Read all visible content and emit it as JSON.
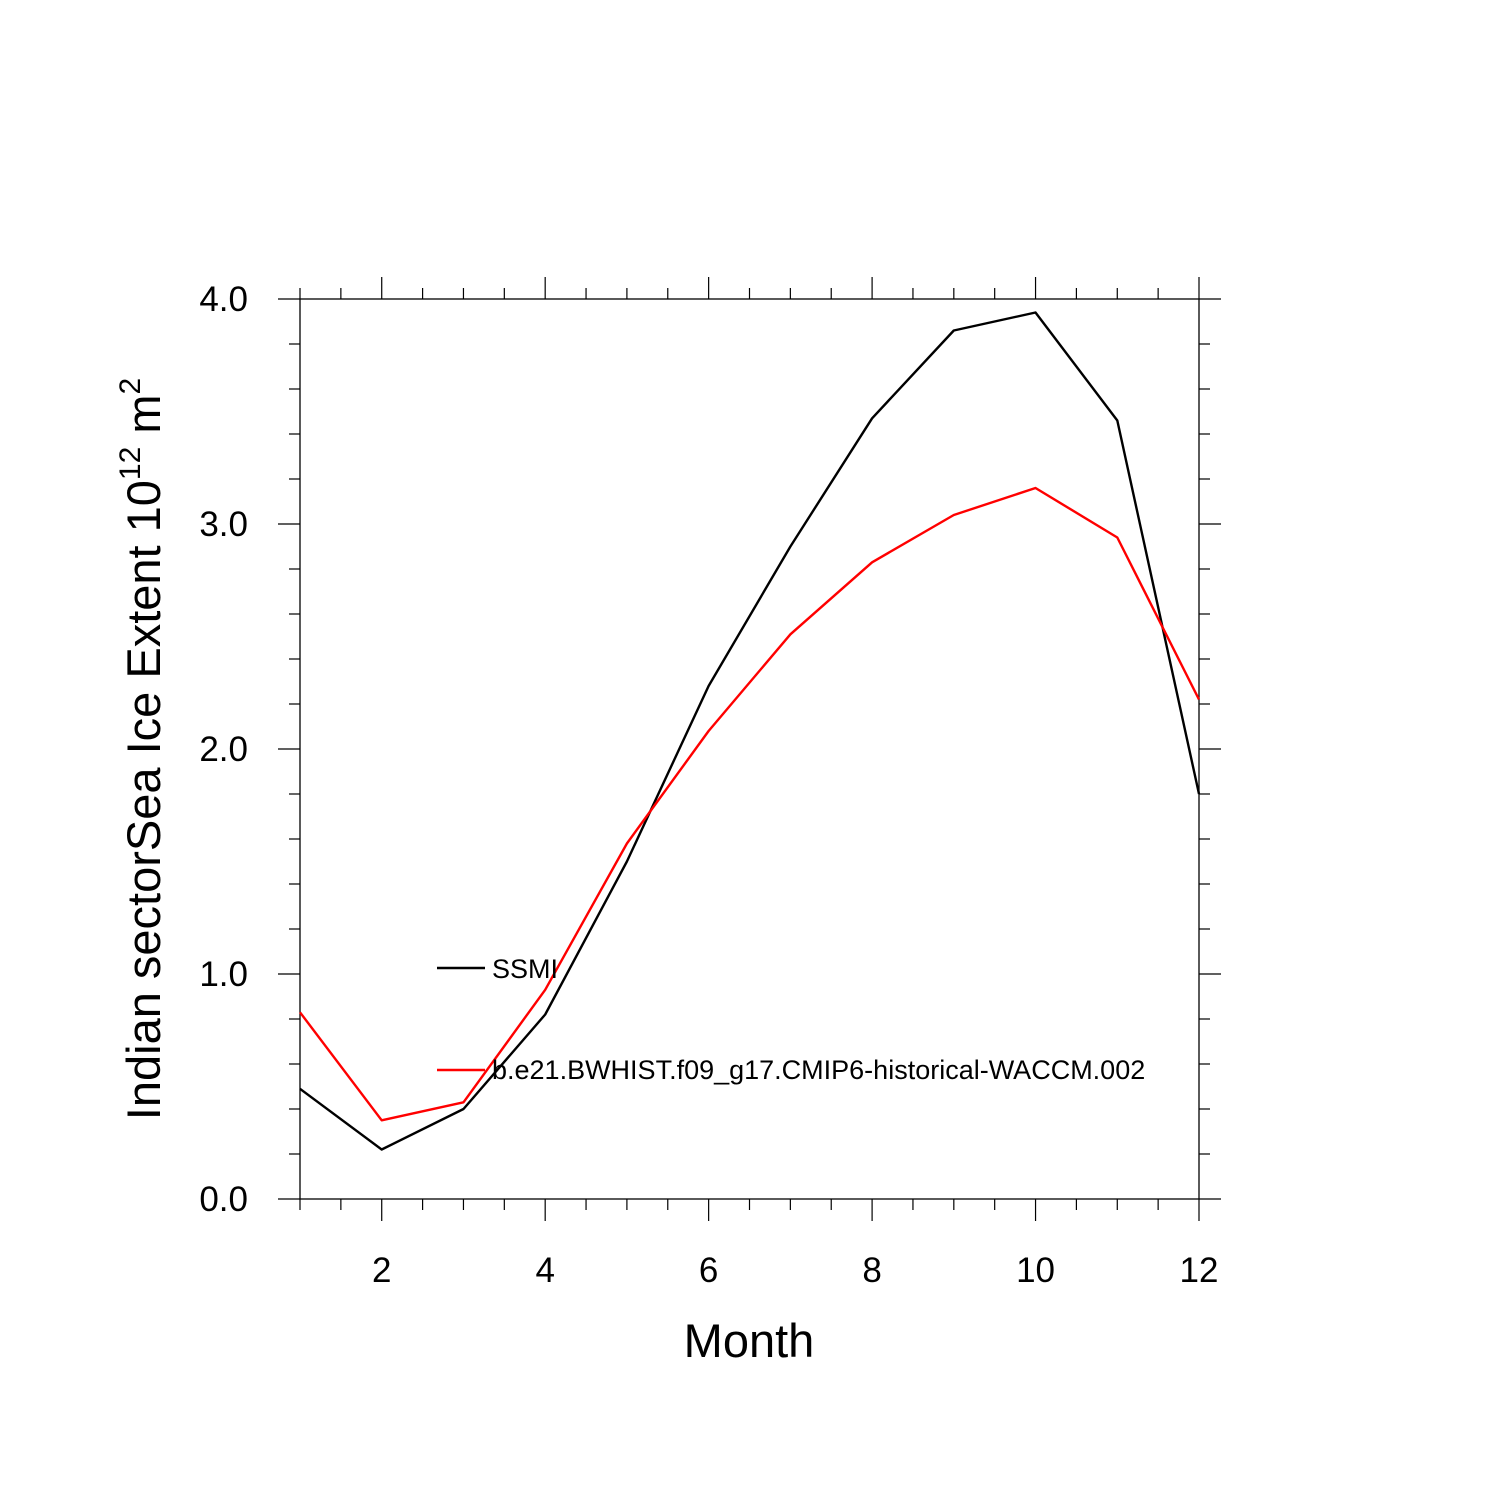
{
  "chart_data": {
    "type": "line",
    "xlabel": "Month",
    "ylabel_main": "Indian sectorSea Ice Extent 10",
    "ylabel_sup1": "12",
    "ylabel_mid": " m",
    "ylabel_sup2": "2",
    "xlim": [
      1,
      12
    ],
    "ylim": [
      0,
      4
    ],
    "x_ticks": [
      2,
      4,
      6,
      8,
      10,
      12
    ],
    "x_tick_labels": [
      "2",
      "4",
      "6",
      "8",
      "10",
      "12"
    ],
    "y_ticks": [
      0,
      1,
      2,
      3,
      4
    ],
    "y_tick_labels": [
      "0.0",
      "1.0",
      "2.0",
      "3.0",
      "4.0"
    ],
    "x": [
      1,
      2,
      3,
      4,
      5,
      6,
      7,
      8,
      9,
      10,
      11,
      12
    ],
    "series": [
      {
        "name": "SSMI",
        "color": "#000000",
        "values": [
          0.49,
          0.22,
          0.4,
          0.82,
          1.5,
          2.28,
          2.9,
          3.47,
          3.86,
          3.94,
          3.46,
          1.8
        ]
      },
      {
        "name": "b.e21.BWHIST.f09_g17.CMIP6-historical-WACCM.002",
        "color": "#ff0000",
        "values": [
          0.83,
          0.35,
          0.43,
          0.93,
          1.58,
          2.08,
          2.51,
          2.83,
          3.04,
          3.16,
          2.94,
          2.22
        ]
      }
    ],
    "legend_position": "inside-lower-left",
    "grid": false
  }
}
